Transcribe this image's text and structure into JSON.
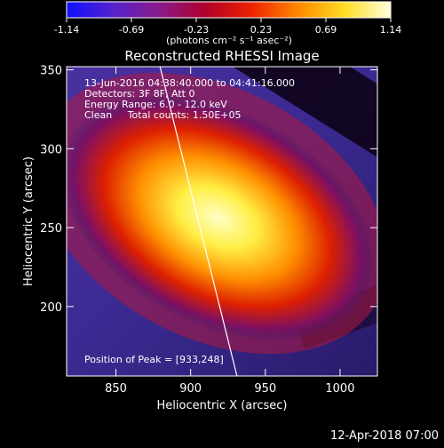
{
  "colorbar": {
    "ticks": [
      "-1.14",
      "-0.69",
      "-0.23",
      "0.23",
      "0.69",
      "1.14"
    ],
    "unit_label": "(photons cm⁻² s⁻¹ asec⁻²)",
    "colors": [
      "#1010ff",
      "#5522cc",
      "#8a1a8a",
      "#b0002a",
      "#ee2200",
      "#ff8800",
      "#ffdd22",
      "#ffffdd"
    ]
  },
  "chart_data": {
    "type": "heatmap",
    "title": "Reconstructed RHESSI Image",
    "xlabel": "Heliocentric X (arcsec)",
    "ylabel": "Heliocentric Y (arcsec)",
    "xlim": [
      817,
      1025
    ],
    "ylim": [
      156,
      352
    ],
    "xticks": [
      850,
      900,
      950,
      1000
    ],
    "yticks": [
      200,
      250,
      300,
      350
    ],
    "annotations": [
      "13-Jun-2016 04:38:40.000 to 04:41:16.000",
      "Detectors: 3F 8F, Att 0",
      "Energy Range: 6.0 - 12.0 keV",
      "Clean     Total counts: 1.50E+05"
    ],
    "peak_label": "Position of Peak = [933,248]",
    "peak": [
      933,
      248
    ],
    "limb_line": [
      [
        879,
        354
      ],
      [
        931,
        156
      ]
    ],
    "colors": {
      "background": "#000000",
      "low": "#3a2a8a",
      "mid": "#c01010",
      "high": "#ffff88"
    }
  },
  "footer": {
    "timestamp": "12-Apr-2018 07:00"
  }
}
